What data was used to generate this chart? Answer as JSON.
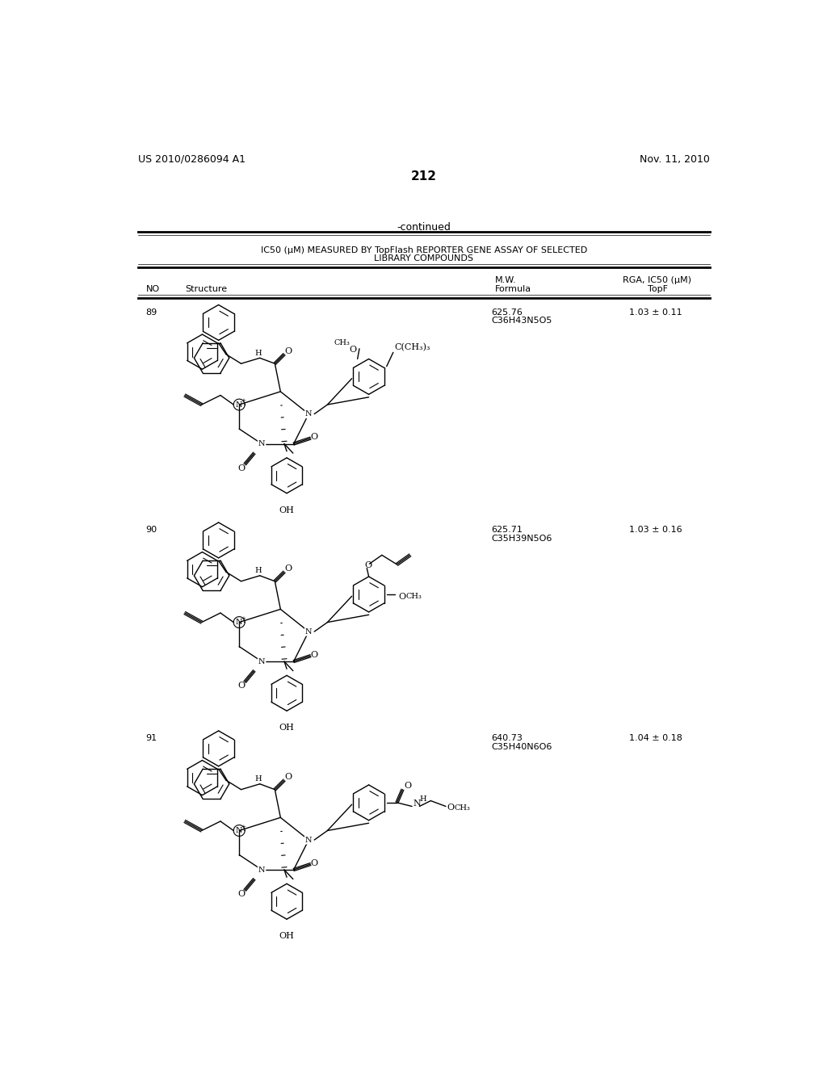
{
  "page_number": "212",
  "patent_number": "US 2010/0286094 A1",
  "patent_date": "Nov. 11, 2010",
  "continued_text": "-continued",
  "table_title_line1": "IC50 (μM) MEASURED BY TopFlash REPORTER GENE ASSAY OF SELECTED",
  "table_title_line2": "LIBRARY COMPOUNDS",
  "compounds": [
    {
      "no": "89",
      "mw": "625.76",
      "formula": "C36H43N5O5",
      "ic50": "1.03 ± 0.11"
    },
    {
      "no": "90",
      "mw": "625.71",
      "formula": "C35H39N5O6",
      "ic50": "1.03 ± 0.16"
    },
    {
      "no": "91",
      "mw": "640.73",
      "formula": "C35H40N6O6",
      "ic50": "1.04 ± 0.18"
    }
  ],
  "bg_color": "#ffffff",
  "text_color": "#000000"
}
